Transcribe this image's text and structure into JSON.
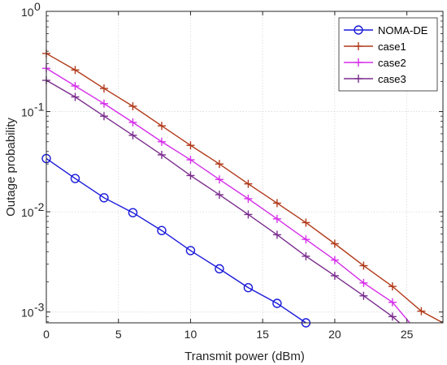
{
  "chart_data": {
    "type": "line",
    "title": "",
    "xlabel": "Transmit power (dBm)",
    "ylabel": "Outage probability",
    "xlim": [
      0,
      27.5
    ],
    "ylim": [
      0.00078,
      1
    ],
    "yscale": "log",
    "grid": true,
    "legend_position": "top-right",
    "x_ticks": [
      {
        "v": 0,
        "label": "0"
      },
      {
        "v": 5,
        "label": "5"
      },
      {
        "v": 10,
        "label": "10"
      },
      {
        "v": 15,
        "label": "15"
      },
      {
        "v": 20,
        "label": "20"
      },
      {
        "v": 25,
        "label": "25"
      }
    ],
    "y_ticks": [
      {
        "v": 0.001,
        "base": "10",
        "exp": "-3"
      },
      {
        "v": 0.01,
        "base": "10",
        "exp": "-2"
      },
      {
        "v": 0.1,
        "base": "10",
        "exp": "-1"
      },
      {
        "v": 1,
        "base": "10",
        "exp": "0"
      }
    ],
    "series": [
      {
        "name": "NOMA-DE",
        "color": "#1a1adb",
        "marker": "circle",
        "x": [
          0,
          2,
          4,
          6,
          8,
          10,
          12,
          14,
          16,
          18
        ],
        "y": [
          0.034,
          0.0215,
          0.0138,
          0.0098,
          0.0065,
          0.0041,
          0.0027,
          0.00175,
          0.00122,
          0.00078
        ]
      },
      {
        "name": "case1",
        "color": "#b13a1a",
        "marker": "plus",
        "x": [
          0,
          2,
          4,
          6,
          8,
          10,
          12,
          14,
          16,
          18,
          20,
          22,
          24,
          26,
          27.5
        ],
        "y": [
          0.38,
          0.26,
          0.17,
          0.113,
          0.072,
          0.046,
          0.03,
          0.019,
          0.0122,
          0.0078,
          0.0048,
          0.0029,
          0.0018,
          0.00102,
          0.00078
        ]
      },
      {
        "name": "case2",
        "color": "#d52fea",
        "marker": "plus",
        "x": [
          0,
          2,
          4,
          6,
          8,
          10,
          12,
          14,
          16,
          18,
          20,
          22,
          24,
          25.2
        ],
        "y": [
          0.27,
          0.18,
          0.12,
          0.078,
          0.05,
          0.033,
          0.021,
          0.0135,
          0.0085,
          0.0053,
          0.0033,
          0.00195,
          0.00125,
          0.00078
        ]
      },
      {
        "name": "case3",
        "color": "#7b2d8e",
        "marker": "plus",
        "x": [
          0,
          2,
          4,
          6,
          8,
          10,
          12,
          14,
          16,
          18,
          20,
          22,
          24,
          24.5
        ],
        "y": [
          0.205,
          0.14,
          0.09,
          0.058,
          0.037,
          0.023,
          0.0148,
          0.0094,
          0.0059,
          0.0036,
          0.0023,
          0.00145,
          0.0009,
          0.00078
        ]
      }
    ]
  }
}
